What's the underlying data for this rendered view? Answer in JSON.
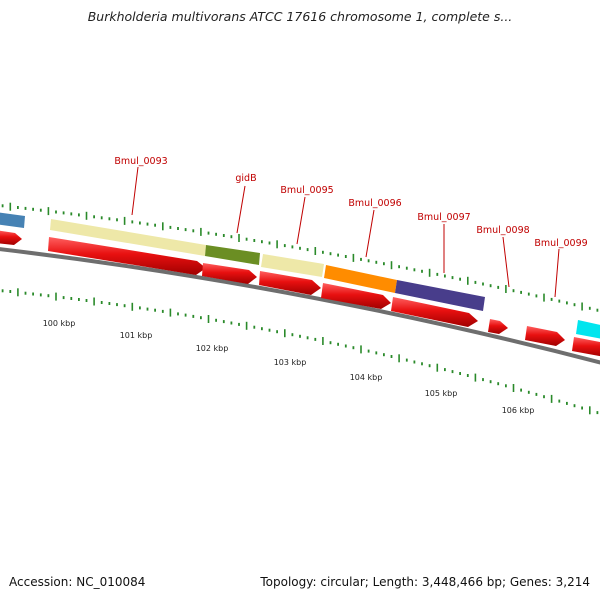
{
  "title": "Burkholderia multivorans ATCC 17616 chromosome 1, complete s...",
  "footer": {
    "accession": "Accession: NC_010084",
    "topology": "Topology: circular; Length: 3,448,466 bp; Genes: 3,214"
  },
  "gene_labels": [
    "Bmul_0093",
    "gidB",
    "Bmul_0095",
    "Bmul_0096",
    "Bmul_0097",
    "Bmul_0098",
    "Bmul_0099"
  ],
  "tick_labels": [
    "100 kbp",
    "101 kbp",
    "102 kbp",
    "103 kbp",
    "104 kbp",
    "105 kbp",
    "106 kbp"
  ],
  "colors": {
    "backbone": "#808080",
    "cds_reverse": "#e01010",
    "tick_mark": "#2a8a2a",
    "label": "#c00000",
    "bmul_0093": "#eee8a8",
    "gidB": "#6b8e23",
    "bmul_0095": "#eee8a8",
    "bmul_0096": "#ff8c00",
    "bmul_0097": "#483d8b",
    "left_partial": "#4682b4",
    "right_partial": "#00e5ee"
  }
}
